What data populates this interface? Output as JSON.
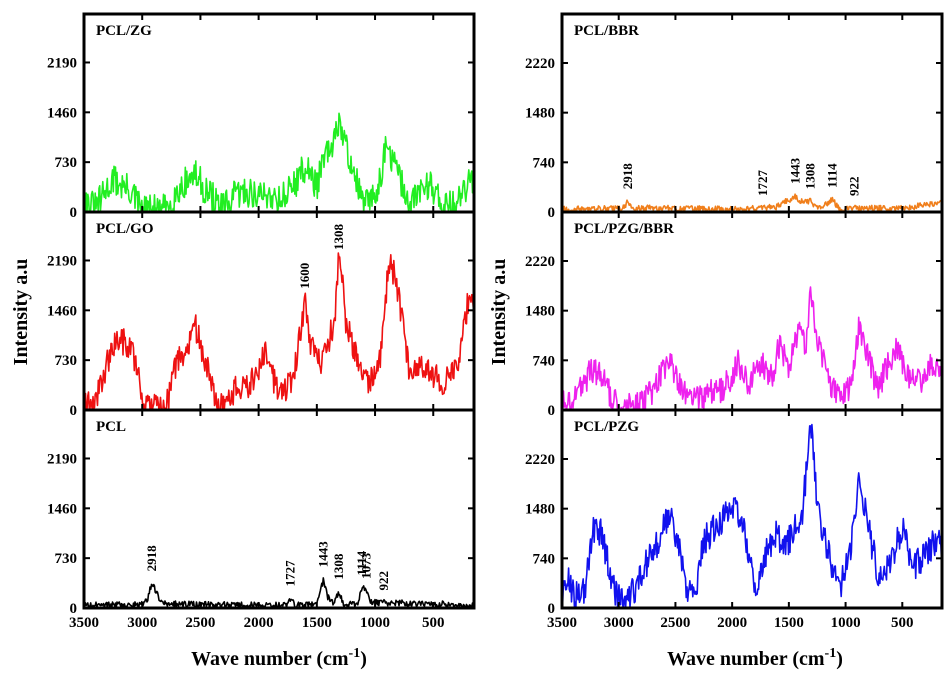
{
  "figure": {
    "ylabel": "Intensity a.u",
    "xlabel_main": "Wave number (cm",
    "xlabel_sup": "-1",
    "xlabel_close": ")",
    "x_ticks": [
      3500,
      3000,
      2500,
      2000,
      1500,
      1000,
      500
    ]
  },
  "chart_data": [
    {
      "type": "line",
      "label": "PCL/ZG",
      "color": "#22ee22",
      "xlim": [
        3500,
        150
      ],
      "ylim": [
        0,
        2900
      ],
      "yticks": [
        0,
        730,
        1460,
        2190
      ],
      "anchors": [
        [
          3500,
          150
        ],
        [
          3400,
          60
        ],
        [
          3250,
          480
        ],
        [
          3100,
          300
        ],
        [
          3000,
          20
        ],
        [
          2800,
          40
        ],
        [
          2650,
          400
        ],
        [
          2550,
          560
        ],
        [
          2450,
          300
        ],
        [
          2300,
          40
        ],
        [
          2200,
          250
        ],
        [
          2100,
          300
        ],
        [
          2000,
          240
        ],
        [
          1900,
          250
        ],
        [
          1800,
          200
        ],
        [
          1700,
          400
        ],
        [
          1600,
          660
        ],
        [
          1500,
          400
        ],
        [
          1420,
          850
        ],
        [
          1360,
          900
        ],
        [
          1310,
          1400
        ],
        [
          1280,
          1100
        ],
        [
          1200,
          700
        ],
        [
          1100,
          100
        ],
        [
          1000,
          220
        ],
        [
          900,
          950
        ],
        [
          820,
          650
        ],
        [
          700,
          60
        ],
        [
          600,
          380
        ],
        [
          520,
          400
        ],
        [
          400,
          80
        ],
        [
          300,
          100
        ],
        [
          200,
          400
        ]
      ],
      "noise": 230,
      "annotations": []
    },
    {
      "type": "line",
      "label": "PCL/BBR",
      "color": "#f07f1c",
      "xlim": [
        3500,
        150
      ],
      "ylim": [
        0,
        2950
      ],
      "yticks": [
        0,
        740,
        1480,
        2220
      ],
      "anchors": [
        [
          3500,
          40
        ],
        [
          3000,
          50
        ],
        [
          2950,
          70
        ],
        [
          2918,
          160
        ],
        [
          2870,
          60
        ],
        [
          2000,
          40
        ],
        [
          1727,
          60
        ],
        [
          1600,
          80
        ],
        [
          1443,
          240
        ],
        [
          1400,
          160
        ],
        [
          1308,
          160
        ],
        [
          1250,
          60
        ],
        [
          1114,
          180
        ],
        [
          1050,
          40
        ],
        [
          922,
          60
        ],
        [
          500,
          50
        ],
        [
          200,
          130
        ]
      ],
      "noise": 45,
      "annotations": [
        {
          "text": "2918",
          "x": 2918
        },
        {
          "text": "1727",
          "x": 1727
        },
        {
          "text": "1443",
          "x": 1443
        },
        {
          "text": "1308",
          "x": 1308
        },
        {
          "text": "1114",
          "x": 1114
        },
        {
          "text": "922",
          "x": 922
        }
      ]
    },
    {
      "type": "line",
      "label": "PCL/GO",
      "color": "#ee1111",
      "xlim": [
        3500,
        150
      ],
      "ylim": [
        0,
        2900
      ],
      "yticks": [
        0,
        730,
        1460,
        2190
      ],
      "anchors": [
        [
          3500,
          40
        ],
        [
          3400,
          150
        ],
        [
          3300,
          700
        ],
        [
          3200,
          1050
        ],
        [
          3100,
          900
        ],
        [
          3050,
          700
        ],
        [
          3000,
          40
        ],
        [
          2800,
          40
        ],
        [
          2700,
          700
        ],
        [
          2600,
          900
        ],
        [
          2550,
          1250
        ],
        [
          2450,
          700
        ],
        [
          2350,
          40
        ],
        [
          2300,
          40
        ],
        [
          2200,
          300
        ],
        [
          2100,
          350
        ],
        [
          2000,
          500
        ],
        [
          1950,
          850
        ],
        [
          1900,
          550
        ],
        [
          1800,
          200
        ],
        [
          1700,
          500
        ],
        [
          1600,
          1600
        ],
        [
          1550,
          900
        ],
        [
          1450,
          700
        ],
        [
          1350,
          1300
        ],
        [
          1308,
          2350
        ],
        [
          1250,
          1300
        ],
        [
          1150,
          700
        ],
        [
          1050,
          400
        ],
        [
          950,
          800
        ],
        [
          880,
          2200
        ],
        [
          820,
          1900
        ],
        [
          700,
          500
        ],
        [
          600,
          700
        ],
        [
          500,
          500
        ],
        [
          400,
          400
        ],
        [
          300,
          600
        ],
        [
          200,
          1600
        ]
      ],
      "noise": 200,
      "annotations": [
        {
          "text": "1600",
          "x": 1600
        },
        {
          "text": "1308",
          "x": 1308
        }
      ]
    },
    {
      "type": "line",
      "label": "PCL/PZG/BBR",
      "color": "#ee22ee",
      "xlim": [
        3500,
        150
      ],
      "ylim": [
        0,
        2950
      ],
      "yticks": [
        0,
        740,
        1480,
        2220
      ],
      "anchors": [
        [
          3500,
          100
        ],
        [
          3400,
          200
        ],
        [
          3300,
          400
        ],
        [
          3250,
          600
        ],
        [
          3150,
          500
        ],
        [
          3050,
          150
        ],
        [
          3000,
          40
        ],
        [
          2800,
          80
        ],
        [
          2700,
          300
        ],
        [
          2600,
          600
        ],
        [
          2550,
          700
        ],
        [
          2450,
          300
        ],
        [
          2350,
          150
        ],
        [
          2200,
          250
        ],
        [
          2100,
          300
        ],
        [
          2000,
          500
        ],
        [
          1950,
          700
        ],
        [
          1850,
          400
        ],
        [
          1750,
          700
        ],
        [
          1650,
          500
        ],
        [
          1580,
          1000
        ],
        [
          1500,
          600
        ],
        [
          1420,
          1200
        ],
        [
          1350,
          900
        ],
        [
          1308,
          1800
        ],
        [
          1250,
          1100
        ],
        [
          1150,
          400
        ],
        [
          1050,
          150
        ],
        [
          950,
          400
        ],
        [
          880,
          1250
        ],
        [
          820,
          900
        ],
        [
          720,
          300
        ],
        [
          620,
          700
        ],
        [
          550,
          900
        ],
        [
          450,
          500
        ],
        [
          350,
          400
        ],
        [
          250,
          700
        ],
        [
          200,
          600
        ]
      ],
      "noise": 200,
      "annotations": []
    },
    {
      "type": "line",
      "label": "PCL",
      "color": "#000000",
      "xlim": [
        3500,
        150
      ],
      "ylim": [
        0,
        2900
      ],
      "yticks": [
        0,
        730,
        1460,
        2190
      ],
      "anchors": [
        [
          3500,
          40
        ],
        [
          3000,
          50
        ],
        [
          2960,
          100
        ],
        [
          2918,
          360
        ],
        [
          2870,
          200
        ],
        [
          2830,
          60
        ],
        [
          2000,
          40
        ],
        [
          1760,
          40
        ],
        [
          1727,
          140
        ],
        [
          1690,
          40
        ],
        [
          1500,
          50
        ],
        [
          1443,
          420
        ],
        [
          1410,
          160
        ],
        [
          1360,
          80
        ],
        [
          1308,
          240
        ],
        [
          1270,
          60
        ],
        [
          1150,
          60
        ],
        [
          1114,
          300
        ],
        [
          1073,
          250
        ],
        [
          1040,
          80
        ],
        [
          922,
          80
        ],
        [
          600,
          60
        ],
        [
          500,
          70
        ],
        [
          300,
          40
        ],
        [
          200,
          30
        ]
      ],
      "noise": 45,
      "annotations": [
        {
          "text": "2918",
          "x": 2918
        },
        {
          "text": "1727",
          "x": 1727
        },
        {
          "text": "1443",
          "x": 1443
        },
        {
          "text": "1308",
          "x": 1308
        },
        {
          "text": "1114",
          "x": 1114
        },
        {
          "text": "1073",
          "x": 1073
        },
        {
          "text": "922",
          "x": 922
        }
      ]
    },
    {
      "type": "line",
      "label": "PCL/PZG",
      "color": "#1111ee",
      "xlim": [
        3500,
        150
      ],
      "ylim": [
        0,
        2950
      ],
      "yticks": [
        0,
        740,
        1480,
        2220
      ],
      "anchors": [
        [
          3500,
          200
        ],
        [
          3450,
          400
        ],
        [
          3380,
          200
        ],
        [
          3300,
          300
        ],
        [
          3220,
          1200
        ],
        [
          3150,
          1100
        ],
        [
          3050,
          300
        ],
        [
          2950,
          60
        ],
        [
          2850,
          300
        ],
        [
          2750,
          700
        ],
        [
          2650,
          1000
        ],
        [
          2550,
          1450
        ],
        [
          2480,
          1000
        ],
        [
          2400,
          300
        ],
        [
          2320,
          200
        ],
        [
          2250,
          1000
        ],
        [
          2150,
          1200
        ],
        [
          2050,
          1400
        ],
        [
          1980,
          1450
        ],
        [
          1900,
          1200
        ],
        [
          1800,
          300
        ],
        [
          1700,
          800
        ],
        [
          1600,
          1200
        ],
        [
          1550,
          800
        ],
        [
          1450,
          1200
        ],
        [
          1380,
          1400
        ],
        [
          1308,
          2800
        ],
        [
          1250,
          1500
        ],
        [
          1150,
          800
        ],
        [
          1050,
          300
        ],
        [
          950,
          900
        ],
        [
          880,
          1900
        ],
        [
          800,
          1200
        ],
        [
          700,
          400
        ],
        [
          600,
          700
        ],
        [
          500,
          1200
        ],
        [
          400,
          600
        ],
        [
          300,
          800
        ],
        [
          200,
          1000
        ]
      ],
      "noise": 220,
      "annotations": []
    }
  ]
}
